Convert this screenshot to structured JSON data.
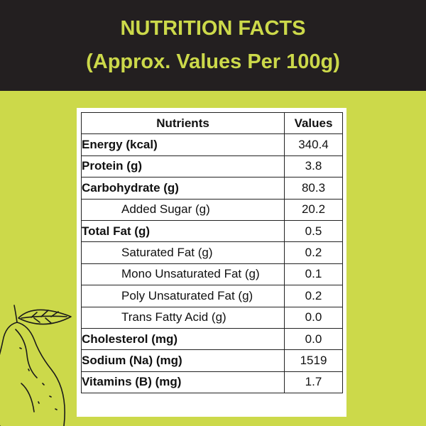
{
  "header": {
    "title": "NUTRITION FACTS",
    "subtitle": "(Approx. Values Per 100g)"
  },
  "table": {
    "headers": [
      "Nutrients",
      "Values"
    ],
    "rows": [
      {
        "name": "Energy (kcal)",
        "value": "340.4",
        "bold": true
      },
      {
        "name": "Protein (g)",
        "value": "3.8",
        "bold": true
      },
      {
        "name": "Carbohydrate (g)",
        "value": "80.3",
        "bold": true
      },
      {
        "name": "Added Sugar (g)",
        "value": "20.2",
        "bold": false
      },
      {
        "name": "Total Fat (g)",
        "value": "0.5",
        "bold": true
      },
      {
        "name": "Saturated Fat (g)",
        "value": "0.2",
        "bold": false
      },
      {
        "name": "Mono Unsaturated Fat (g)",
        "value": "0.1",
        "bold": false
      },
      {
        "name": "Poly Unsaturated Fat (g)",
        "value": "0.2",
        "bold": false
      },
      {
        "name": "Trans Fatty Acid (g)",
        "value": "0.0",
        "bold": false
      },
      {
        "name": "Cholesterol (mg)",
        "value": "0.0",
        "bold": true
      },
      {
        "name": "Sodium (Na) (mg)",
        "value": "1519",
        "bold": true
      },
      {
        "name": "Vitamins (B) (mg)",
        "value": "1.7",
        "bold": true
      }
    ]
  },
  "colors": {
    "background": "#ccd94a",
    "header_background": "#231f20",
    "title_text": "#ccd94a"
  },
  "illustration": {
    "icon": "guava-icon"
  }
}
